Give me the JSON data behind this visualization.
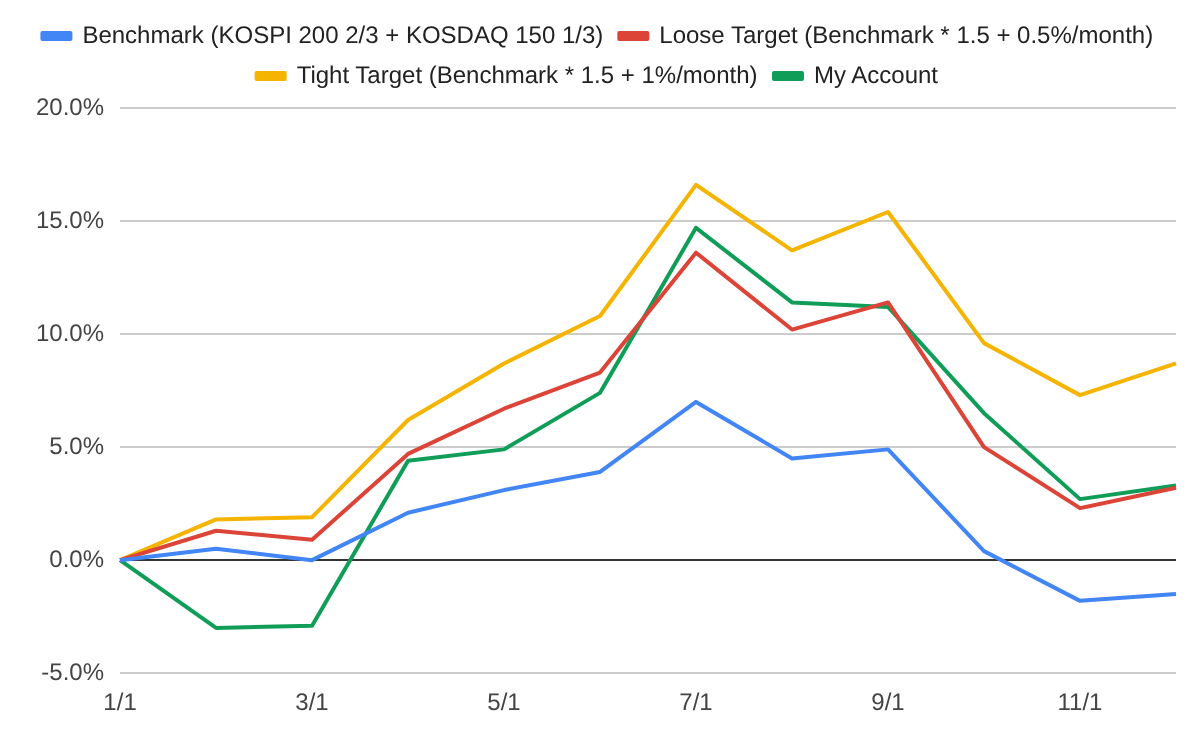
{
  "chart_data": {
    "type": "line",
    "categories": [
      "1/1",
      null,
      "3/1",
      null,
      "5/1",
      null,
      "7/1",
      null,
      "9/1",
      null,
      "11/1",
      null
    ],
    "series": [
      {
        "name": "Benchmark (KOSPI 200 2/3 + KOSDAQ 150 1/3)",
        "color": "#4285f4",
        "values": [
          0,
          0.5,
          0.0,
          2.1,
          3.1,
          3.9,
          7.0,
          4.5,
          4.9,
          0.4,
          -1.8,
          -1.5
        ]
      },
      {
        "name": "Loose Target (Benchmark * 1.5 + 0.5%/month)",
        "color": "#db4437",
        "values": [
          0,
          1.3,
          0.9,
          4.7,
          6.7,
          8.3,
          13.6,
          10.2,
          11.4,
          5.0,
          2.3,
          3.2
        ]
      },
      {
        "name": "Tight Target (Benchmark * 1.5 + 1%/month)",
        "color": "#f4b400",
        "values": [
          0,
          1.8,
          1.9,
          6.2,
          8.7,
          10.8,
          16.6,
          13.7,
          15.4,
          9.6,
          7.3,
          8.7
        ]
      },
      {
        "name": "My Account",
        "color": "#0f9d58",
        "values": [
          0,
          -3.0,
          -2.9,
          4.4,
          4.9,
          7.4,
          14.7,
          11.4,
          11.2,
          6.5,
          2.7,
          3.3
        ]
      }
    ],
    "ylim": [
      -5,
      20
    ],
    "yticks": [
      {
        "value": -5,
        "label": "-5.0%"
      },
      {
        "value": 0,
        "label": "0.0%"
      },
      {
        "value": 5,
        "label": "5.0%"
      },
      {
        "value": 10,
        "label": "10.0%"
      },
      {
        "value": 15,
        "label": "15.0%"
      },
      {
        "value": 20,
        "label": "20.0%"
      }
    ],
    "grid": "y",
    "legend": "top",
    "marker": "none",
    "line_style": "solid"
  }
}
